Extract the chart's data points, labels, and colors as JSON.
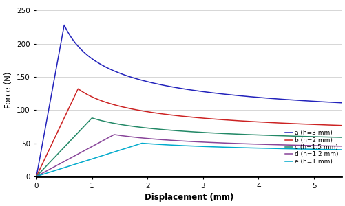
{
  "title": "",
  "xlabel": "Displacement (mm)",
  "ylabel": "Force (N)",
  "xlim": [
    0,
    5.5
  ],
  "ylim": [
    0,
    260
  ],
  "xticks": [
    0,
    1,
    2,
    3,
    4,
    5
  ],
  "yticks": [
    0,
    50,
    100,
    150,
    200,
    250
  ],
  "series": [
    {
      "label": "a (h=3 mm)",
      "color": "#2222bb",
      "peak_x": 0.5,
      "peak_y": 228,
      "tail_y": 68,
      "decay_k": 0.55
    },
    {
      "label": "b (h=2 mm)",
      "color": "#cc2222",
      "peak_x": 0.75,
      "peak_y": 132,
      "tail_y": 49,
      "decay_k": 0.55
    },
    {
      "label": "c (h=1.5 mm)",
      "color": "#228866",
      "peak_x": 1.0,
      "peak_y": 88,
      "tail_y": 40,
      "decay_k": 0.55
    },
    {
      "label": "d (h=1.2 mm)",
      "color": "#884499",
      "peak_x": 1.4,
      "peak_y": 63,
      "tail_y": 30,
      "decay_k": 0.55
    },
    {
      "label": "e (h=1 mm)",
      "color": "#00aacc",
      "peak_x": 1.9,
      "peak_y": 50,
      "tail_y": 28,
      "decay_k": 0.55
    }
  ],
  "background_color": "#ffffff",
  "grid_color": "#d0d0d0",
  "legend_fontsize": 6.5,
  "axis_fontsize": 8.5,
  "tick_fontsize": 7.5
}
